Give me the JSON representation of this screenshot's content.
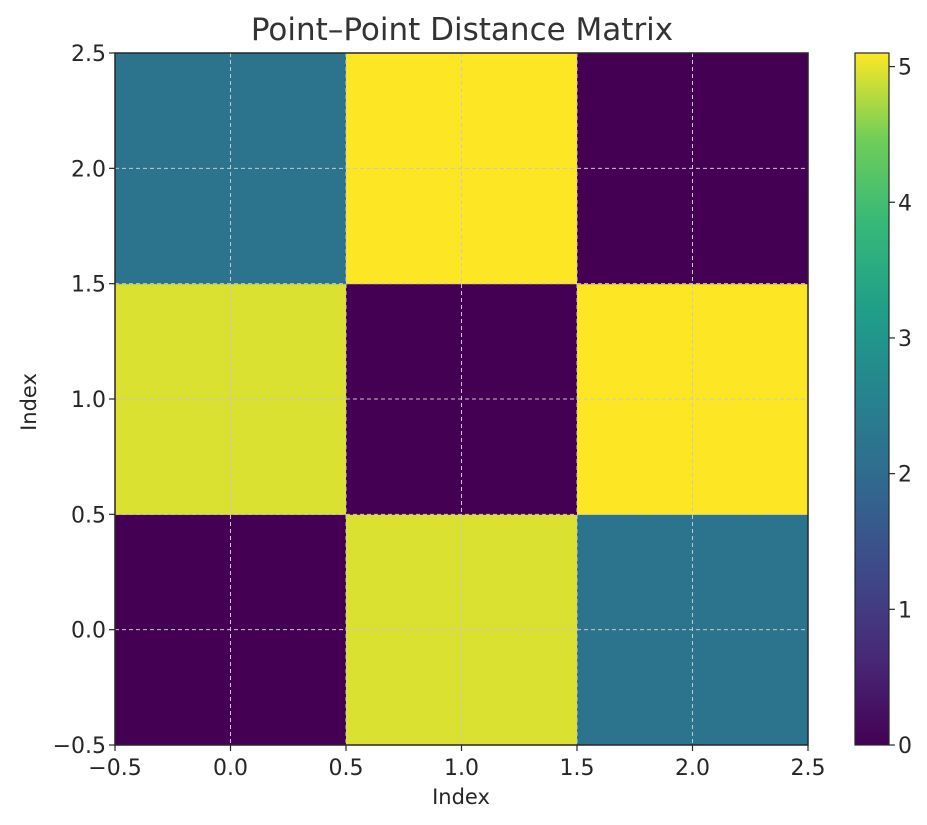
{
  "chart_data": {
    "type": "heatmap",
    "title": "Point–Point Distance Matrix",
    "xlabel": "Index",
    "ylabel": "Index",
    "x_ticks": [
      "−0.5",
      "0.0",
      "0.5",
      "1.0",
      "1.5",
      "2.0",
      "2.5"
    ],
    "y_ticks": [
      "−0.5",
      "0.0",
      "0.5",
      "1.0",
      "1.5",
      "2.0",
      "2.5"
    ],
    "xlim": [
      -0.5,
      2.5
    ],
    "ylim": [
      -0.5,
      2.5
    ],
    "origin": "lower",
    "matrix": [
      [
        0.0,
        4.95,
        2.2
      ],
      [
        4.95,
        0.0,
        5.1
      ],
      [
        2.2,
        5.1,
        0.0
      ]
    ],
    "colorbar": {
      "min": 0,
      "max": 5.1,
      "ticks": [
        "0",
        "1",
        "2",
        "3",
        "4",
        "5"
      ],
      "colormap": "viridis"
    },
    "grid": true,
    "grid_style": "dashed"
  }
}
